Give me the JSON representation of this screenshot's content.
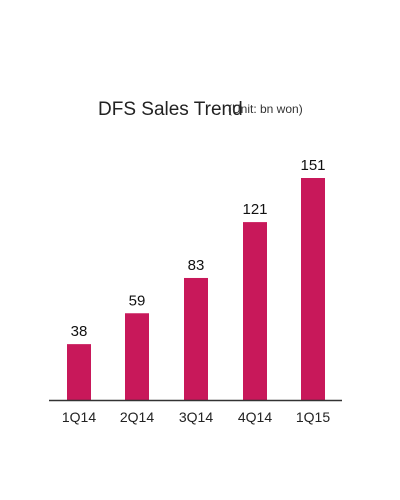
{
  "chart_data": {
    "type": "bar",
    "title": "DFS Sales Trend",
    "subtitle": "(Unit: bn won)",
    "categories": [
      "1Q14",
      "2Q14",
      "3Q14",
      "4Q14",
      "1Q15"
    ],
    "values": [
      38,
      59,
      83,
      121,
      151
    ],
    "xlabel": "",
    "ylabel": "",
    "ylim": [
      0,
      151
    ],
    "grid": false,
    "legend": "none",
    "bar_color": "#c8185a",
    "axis_color": "#333333"
  }
}
